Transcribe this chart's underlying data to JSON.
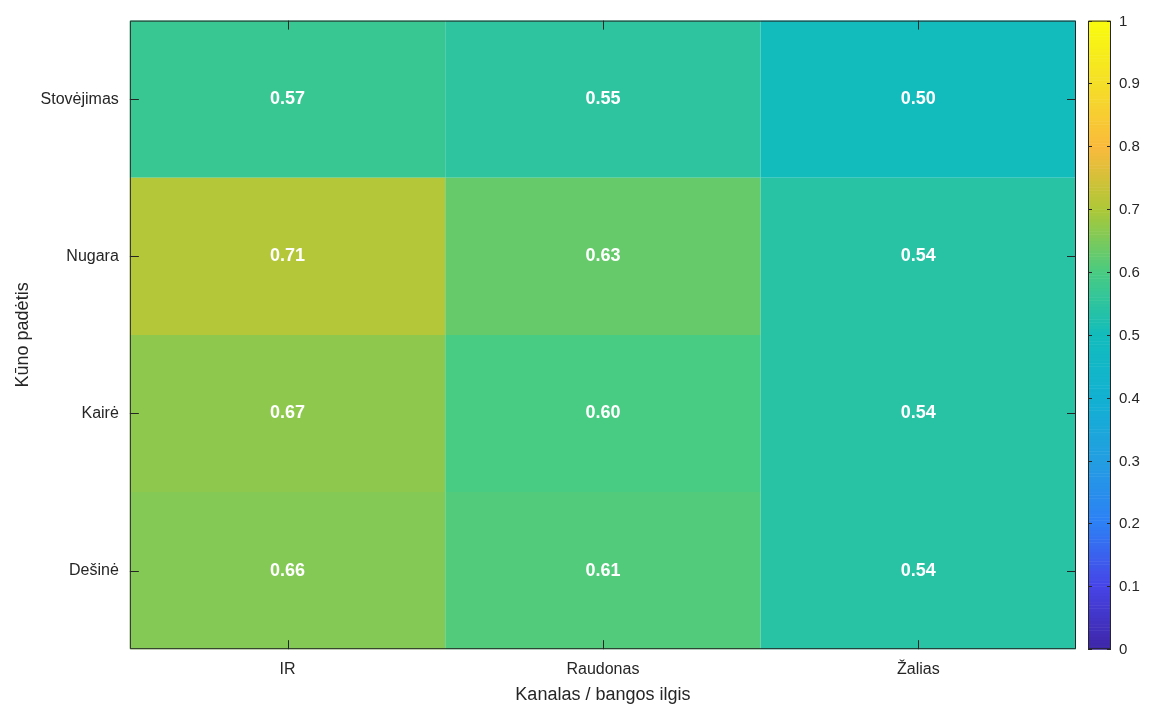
{
  "chart_data": {
    "type": "heatmap",
    "xlabel": "Kanalas / bangos ilgis",
    "ylabel": "Kūno padėtis",
    "categories": [
      "IR",
      "Raudonas",
      "Žalias"
    ],
    "y_categories": [
      "Stovėjimas",
      "Nugara",
      "Kairė",
      "Dešinė"
    ],
    "cells": [
      [
        0.57,
        0.55,
        0.5
      ],
      [
        0.71,
        0.63,
        0.54
      ],
      [
        0.67,
        0.6,
        0.54
      ],
      [
        0.66,
        0.61,
        0.54
      ]
    ],
    "cell_labels": [
      [
        "0.57",
        "0.55",
        "0.50"
      ],
      [
        "0.71",
        "0.63",
        "0.54"
      ],
      [
        "0.67",
        "0.60",
        "0.54"
      ],
      [
        "0.66",
        "0.61",
        "0.54"
      ]
    ],
    "clim": [
      0,
      1
    ],
    "cticks": [
      0,
      0.1,
      0.2,
      0.3,
      0.4,
      0.5,
      0.6,
      0.7,
      0.8,
      0.9,
      1
    ]
  }
}
